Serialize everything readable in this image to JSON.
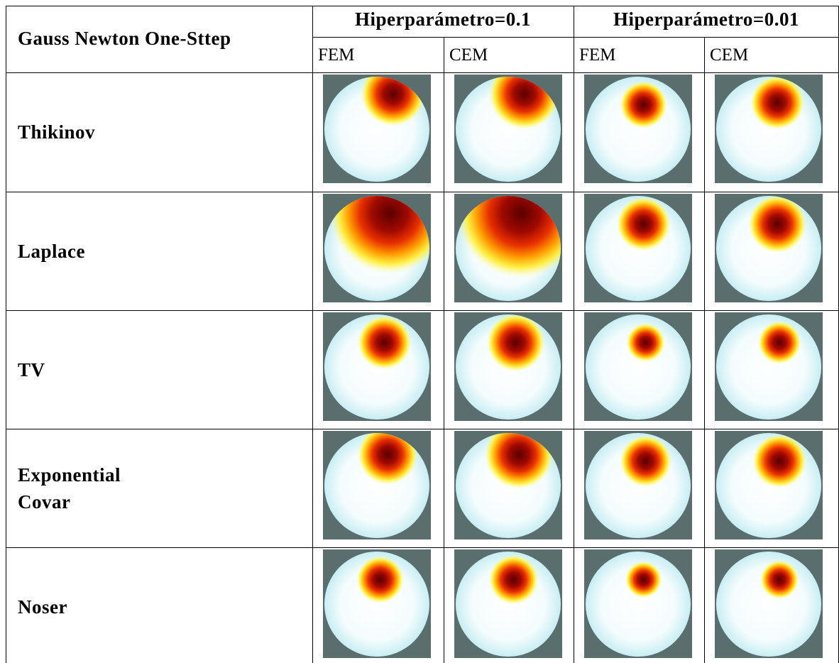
{
  "header": {
    "corner": "Gauss Newton One-Sttep",
    "groups": [
      "Hiperparámetro=0.1",
      "Hiperparámetro=0.01"
    ],
    "subheaders": [
      "FEM",
      "CEM",
      "FEM",
      "CEM"
    ]
  },
  "rows": [
    [
      "Thikinov"
    ],
    [
      "Laplace"
    ],
    [
      "TV"
    ],
    [
      "Exponential",
      "Covar"
    ],
    [
      "Noser"
    ]
  ]
}
